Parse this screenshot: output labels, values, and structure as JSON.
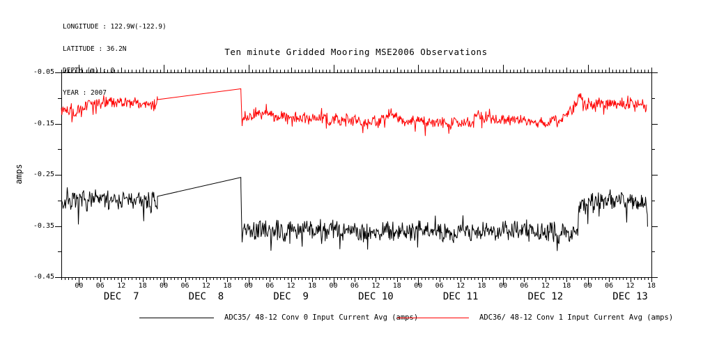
{
  "header": {
    "info_lines": [
      "LONGITUDE : 122.9W(-122.9)",
      "LATITUDE : 36.2N",
      "DEPTH (m) : 0",
      "YEAR : 2007"
    ],
    "title": "Ten minute Gridded Mooring MSE2006 Observations"
  },
  "chart_data": {
    "type": "line",
    "title": "Ten minute Gridded Mooring MSE2006 Observations",
    "ylabel": "amps",
    "ylim": [
      -0.45,
      -0.05
    ],
    "grid": false,
    "legend_position": "bottom",
    "y_axis": {
      "tick_labels": [
        "-0.05",
        "-0.15",
        "-0.25",
        "-0.35",
        "-0.45"
      ],
      "tick_values": [
        -0.05,
        -0.15,
        -0.25,
        -0.35,
        -0.45
      ],
      "minor_tick_values": [
        -0.1,
        -0.2,
        -0.3,
        -0.4
      ]
    },
    "x_axis": {
      "unit": "hours from DEC 7 00:00, year 2007",
      "range_hours": [
        -5,
        162
      ],
      "minor_tick_hours": 1,
      "hour_label_texts": [
        "00",
        "06",
        "12",
        "18"
      ],
      "hour_label_offsets": [
        0,
        6,
        12,
        18
      ],
      "day_ticks": [
        {
          "label": "DEC  7",
          "start_hour": 0
        },
        {
          "label": "DEC  8",
          "start_hour": 24
        },
        {
          "label": "DEC  9",
          "start_hour": 48
        },
        {
          "label": "DEC 10",
          "start_hour": 72
        },
        {
          "label": "DEC 11",
          "start_hour": 96
        },
        {
          "label": "DEC 12",
          "start_hour": 120
        },
        {
          "label": "DEC 13",
          "start_hour": 144
        }
      ]
    },
    "sample_step_hours": 0.166667,
    "data_gap_hours": [
      22.2,
      45.8
    ],
    "series": [
      {
        "name": "ADC35/ 48-12 Conv 0 Input Current Avg (amps)",
        "color": "#000000",
        "noise_amp": 0.013,
        "seed": 7,
        "keypoints": [
          [
            -5,
            -0.298
          ],
          [
            -4.2,
            -0.306
          ],
          [
            -3.4,
            -0.295
          ],
          [
            -2.6,
            -0.305
          ],
          [
            -1.8,
            -0.296
          ],
          [
            -1,
            -0.31
          ],
          [
            -0.2,
            -0.298
          ],
          [
            0.6,
            -0.305
          ],
          [
            1.4,
            -0.295
          ],
          [
            2.2,
            -0.303
          ],
          [
            3,
            -0.294
          ],
          [
            4,
            -0.301
          ],
          [
            5,
            -0.295
          ],
          [
            6,
            -0.302
          ],
          [
            7,
            -0.295
          ],
          [
            8,
            -0.301
          ],
          [
            9,
            -0.296
          ],
          [
            10,
            -0.302
          ],
          [
            11,
            -0.296
          ],
          [
            12,
            -0.301
          ],
          [
            13,
            -0.296
          ],
          [
            14,
            -0.302
          ],
          [
            15,
            -0.297
          ],
          [
            16,
            -0.303
          ],
          [
            17,
            -0.297
          ],
          [
            18,
            -0.303
          ],
          [
            19,
            -0.298
          ],
          [
            20,
            -0.304
          ],
          [
            21,
            -0.299
          ],
          [
            21.8,
            -0.305
          ],
          [
            22.2,
            -0.292
          ],
          [
            45.8,
            -0.255
          ],
          [
            46.1,
            -0.398
          ],
          [
            46.6,
            -0.35
          ],
          [
            47.3,
            -0.366
          ],
          [
            48,
            -0.355
          ],
          [
            50,
            -0.36
          ],
          [
            52,
            -0.354
          ],
          [
            54,
            -0.361
          ],
          [
            56,
            -0.356
          ],
          [
            58,
            -0.362
          ],
          [
            60,
            -0.356
          ],
          [
            62,
            -0.361
          ],
          [
            64,
            -0.357
          ],
          [
            66,
            -0.362
          ],
          [
            68,
            -0.356
          ],
          [
            70,
            -0.361
          ],
          [
            72,
            -0.357
          ],
          [
            74,
            -0.361
          ],
          [
            76,
            -0.356
          ],
          [
            78,
            -0.361
          ],
          [
            80,
            -0.357
          ],
          [
            82,
            -0.361
          ],
          [
            84,
            -0.356
          ],
          [
            86,
            -0.361
          ],
          [
            88,
            -0.357
          ],
          [
            90,
            -0.361
          ],
          [
            92,
            -0.357
          ],
          [
            94,
            -0.361
          ],
          [
            96,
            -0.357
          ],
          [
            98,
            -0.361
          ],
          [
            100,
            -0.356
          ],
          [
            102,
            -0.361
          ],
          [
            104,
            -0.357
          ],
          [
            106,
            -0.361
          ],
          [
            108,
            -0.357
          ],
          [
            110,
            -0.361
          ],
          [
            112,
            -0.357
          ],
          [
            114,
            -0.36
          ],
          [
            116,
            -0.356
          ],
          [
            118,
            -0.361
          ],
          [
            120,
            -0.357
          ],
          [
            122,
            -0.361
          ],
          [
            124,
            -0.357
          ],
          [
            126,
            -0.361
          ],
          [
            128,
            -0.359
          ],
          [
            130,
            -0.363
          ],
          [
            132,
            -0.365
          ],
          [
            134,
            -0.36
          ],
          [
            136,
            -0.367
          ],
          [
            137.5,
            -0.36
          ],
          [
            139,
            -0.366
          ],
          [
            140.2,
            -0.357
          ],
          [
            141,
            -0.342
          ],
          [
            141.6,
            -0.316
          ],
          [
            142.3,
            -0.3
          ],
          [
            143.3,
            -0.306
          ],
          [
            144.5,
            -0.298
          ],
          [
            146,
            -0.304
          ],
          [
            147.5,
            -0.297
          ],
          [
            149,
            -0.303
          ],
          [
            150.5,
            -0.297
          ],
          [
            152,
            -0.303
          ],
          [
            153.5,
            -0.298
          ],
          [
            155,
            -0.303
          ],
          [
            156.5,
            -0.298
          ],
          [
            158,
            -0.304
          ],
          [
            159.2,
            -0.299
          ],
          [
            160.3,
            -0.305
          ],
          [
            160.9,
            -0.33
          ]
        ]
      },
      {
        "name": "ADC36/ 48-12 Conv 1 Input Current Avg (amps)",
        "color": "#ff0000",
        "noise_amp": 0.0075,
        "seed": 13,
        "keypoints": [
          [
            -5,
            -0.118
          ],
          [
            -4.3,
            -0.124
          ],
          [
            -3.6,
            -0.116
          ],
          [
            -3,
            -0.125
          ],
          [
            -2.4,
            -0.118
          ],
          [
            -1.8,
            -0.13
          ],
          [
            -1.2,
            -0.142
          ],
          [
            -0.7,
            -0.13
          ],
          [
            0,
            -0.122
          ],
          [
            0.8,
            -0.127
          ],
          [
            1.6,
            -0.117
          ],
          [
            2.4,
            -0.113
          ],
          [
            3.2,
            -0.11
          ],
          [
            4,
            -0.114
          ],
          [
            5,
            -0.108
          ],
          [
            6,
            -0.112
          ],
          [
            7,
            -0.106
          ],
          [
            8,
            -0.11
          ],
          [
            9,
            -0.105
          ],
          [
            10,
            -0.111
          ],
          [
            11,
            -0.106
          ],
          [
            12,
            -0.112
          ],
          [
            13,
            -0.107
          ],
          [
            14,
            -0.104
          ],
          [
            15,
            -0.113
          ],
          [
            16,
            -0.107
          ],
          [
            17,
            -0.114
          ],
          [
            18,
            -0.108
          ],
          [
            19,
            -0.113
          ],
          [
            20,
            -0.108
          ],
          [
            21,
            -0.116
          ],
          [
            21.8,
            -0.111
          ],
          [
            22.2,
            -0.103
          ],
          [
            45.8,
            -0.082
          ],
          [
            46.1,
            -0.149
          ],
          [
            46.8,
            -0.134
          ],
          [
            47.5,
            -0.141
          ],
          [
            48.5,
            -0.133
          ],
          [
            50,
            -0.128
          ],
          [
            51.5,
            -0.135
          ],
          [
            53,
            -0.128
          ],
          [
            54.5,
            -0.134
          ],
          [
            56,
            -0.139
          ],
          [
            57.5,
            -0.132
          ],
          [
            59,
            -0.14
          ],
          [
            60.5,
            -0.135
          ],
          [
            62,
            -0.142
          ],
          [
            63.5,
            -0.136
          ],
          [
            65,
            -0.143
          ],
          [
            66.5,
            -0.136
          ],
          [
            68,
            -0.141
          ],
          [
            69.5,
            -0.137
          ],
          [
            71,
            -0.144
          ],
          [
            72.5,
            -0.139
          ],
          [
            74,
            -0.145
          ],
          [
            75.5,
            -0.14
          ],
          [
            77,
            -0.146
          ],
          [
            78.5,
            -0.141
          ],
          [
            80,
            -0.147
          ],
          [
            81.5,
            -0.149
          ],
          [
            83,
            -0.144
          ],
          [
            84.5,
            -0.149
          ],
          [
            86,
            -0.141
          ],
          [
            87.5,
            -0.132
          ],
          [
            88.5,
            -0.129
          ],
          [
            89.5,
            -0.136
          ],
          [
            91,
            -0.143
          ],
          [
            92.5,
            -0.147
          ],
          [
            94,
            -0.142
          ],
          [
            95.5,
            -0.147
          ],
          [
            97,
            -0.143
          ],
          [
            98.5,
            -0.148
          ],
          [
            100,
            -0.144
          ],
          [
            101.5,
            -0.149
          ],
          [
            103,
            -0.145
          ],
          [
            104.5,
            -0.15
          ],
          [
            106,
            -0.146
          ],
          [
            107.5,
            -0.15
          ],
          [
            109,
            -0.146
          ],
          [
            110.5,
            -0.15
          ],
          [
            111.8,
            -0.142
          ],
          [
            112.6,
            -0.129
          ],
          [
            113.4,
            -0.133
          ],
          [
            114.5,
            -0.142
          ],
          [
            116,
            -0.138
          ],
          [
            117.5,
            -0.144
          ],
          [
            119,
            -0.139
          ],
          [
            120.5,
            -0.146
          ],
          [
            122,
            -0.141
          ],
          [
            123.5,
            -0.147
          ],
          [
            125,
            -0.142
          ],
          [
            126.5,
            -0.148
          ],
          [
            128,
            -0.144
          ],
          [
            129.5,
            -0.149
          ],
          [
            131,
            -0.146
          ],
          [
            132.5,
            -0.152
          ],
          [
            133.5,
            -0.147
          ],
          [
            134.5,
            -0.142
          ],
          [
            135.5,
            -0.147
          ],
          [
            136.5,
            -0.138
          ],
          [
            137.5,
            -0.133
          ],
          [
            138.5,
            -0.128
          ],
          [
            139.5,
            -0.122
          ],
          [
            140.5,
            -0.114
          ],
          [
            141.3,
            -0.098
          ],
          [
            141.9,
            -0.091
          ],
          [
            142.5,
            -0.107
          ],
          [
            143.2,
            -0.117
          ],
          [
            144.2,
            -0.109
          ],
          [
            145.5,
            -0.115
          ],
          [
            147,
            -0.106
          ],
          [
            148.5,
            -0.112
          ],
          [
            150,
            -0.107
          ],
          [
            151.5,
            -0.113
          ],
          [
            153,
            -0.108
          ],
          [
            154.5,
            -0.113
          ],
          [
            156,
            -0.108
          ],
          [
            157.5,
            -0.114
          ],
          [
            158.7,
            -0.109
          ],
          [
            159.8,
            -0.114
          ],
          [
            160.6,
            -0.124
          ]
        ]
      }
    ]
  }
}
